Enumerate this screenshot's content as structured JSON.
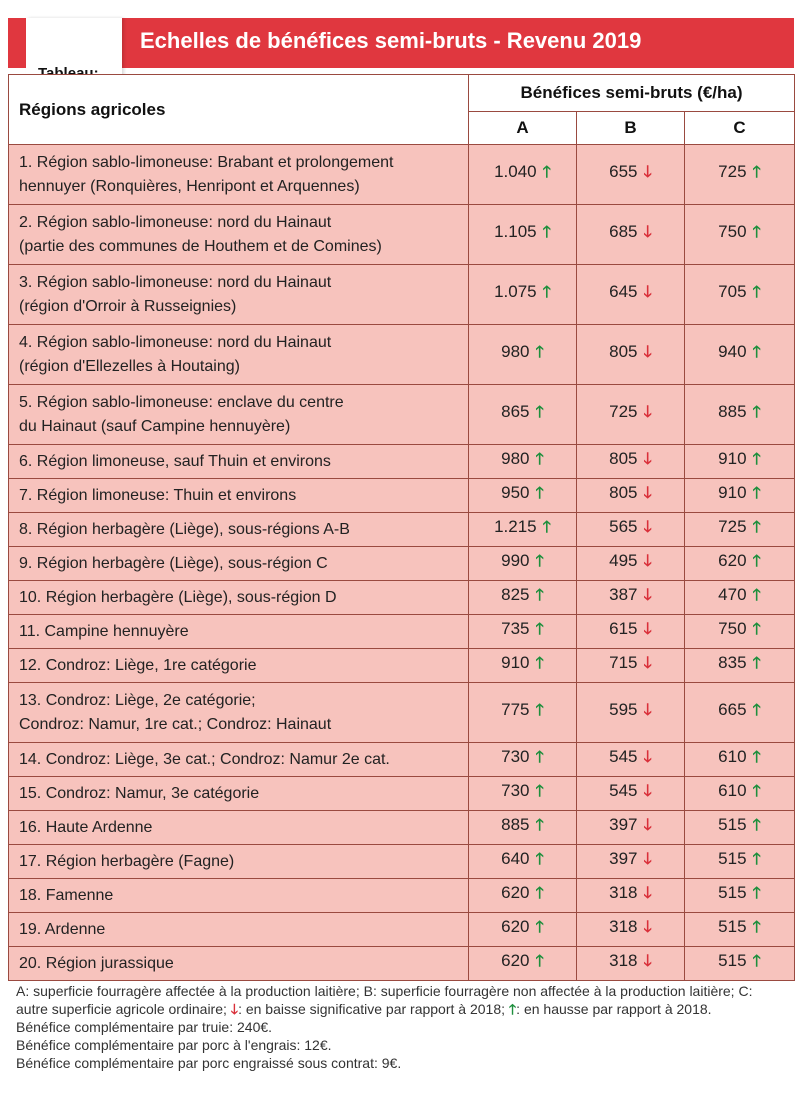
{
  "header": {
    "tag": "Tableau:",
    "title": "Echelles de bénéfices semi-bruts - Revenu 2019"
  },
  "table": {
    "region_header": "Régions agricoles",
    "group_header": "Bénéfices semi-bruts (€/ha)",
    "columns": [
      "A",
      "B",
      "C"
    ],
    "rows": [
      {
        "lines": [
          "1. Région sablo-limoneuse: Brabant et prolongement",
          "hennuyer (Ronquières, Henripont et Arquennes)"
        ],
        "a": "1.040",
        "b": "655",
        "c": "725"
      },
      {
        "lines": [
          "2. Région sablo-limoneuse: nord du Hainaut",
          "(partie des communes de Houthem et de Comines)"
        ],
        "a": "1.105",
        "b": "685",
        "c": "750"
      },
      {
        "lines": [
          "3. Région sablo-limoneuse: nord du Hainaut",
          "(région d'Orroir à Russeignies)"
        ],
        "a": "1.075",
        "b": "645",
        "c": "705"
      },
      {
        "lines": [
          "4. Région sablo-limoneuse: nord du Hainaut",
          "(région d'Ellezelles à Houtaing)"
        ],
        "a": "980",
        "b": "805",
        "c": "940"
      },
      {
        "lines": [
          "5. Région sablo-limoneuse: enclave du centre",
          "du Hainaut (sauf Campine hennuyère)"
        ],
        "a": "865",
        "b": "725",
        "c": "885"
      },
      {
        "lines": [
          "6. Région limoneuse, sauf Thuin et environs"
        ],
        "a": "980",
        "b": "805",
        "c": "910"
      },
      {
        "lines": [
          "7. Région limoneuse: Thuin et environs"
        ],
        "a": "950",
        "b": "805",
        "c": "910"
      },
      {
        "lines": [
          "8. Région herbagère (Liège), sous-régions A-B"
        ],
        "a": "1.215",
        "b": "565",
        "c": "725"
      },
      {
        "lines": [
          "9. Région herbagère (Liège), sous-région C"
        ],
        "a": "990",
        "b": "495",
        "c": "620"
      },
      {
        "lines": [
          "10. Région herbagère (Liège), sous-région D"
        ],
        "a": "825",
        "b": "387",
        "c": "470"
      },
      {
        "lines": [
          "11. Campine hennuyère"
        ],
        "a": "735",
        "b": "615",
        "c": "750"
      },
      {
        "lines": [
          "12. Condroz: Liège, 1re catégorie"
        ],
        "a": "910",
        "b": "715",
        "c": "835"
      },
      {
        "lines": [
          "13. Condroz: Liège, 2e catégorie;",
          "Condroz: Namur, 1re cat.; Condroz: Hainaut"
        ],
        "a": "775",
        "b": "595",
        "c": "665"
      },
      {
        "lines": [
          "14. Condroz: Liège, 3e cat.; Condroz: Namur 2e cat."
        ],
        "a": "730",
        "b": "545",
        "c": "610"
      },
      {
        "lines": [
          "15. Condroz: Namur, 3e catégorie"
        ],
        "a": "730",
        "b": "545",
        "c": "610"
      },
      {
        "lines": [
          "16. Haute Ardenne"
        ],
        "a": "885",
        "b": "397",
        "c": "515"
      },
      {
        "lines": [
          "17. Région herbagère (Fagne)"
        ],
        "a": "640",
        "b": "397",
        "c": "515"
      },
      {
        "lines": [
          "18. Famenne"
        ],
        "a": "620",
        "b": "318",
        "c": "515"
      },
      {
        "lines": [
          "19. Ardenne"
        ],
        "a": "620",
        "b": "318",
        "c": "515"
      },
      {
        "lines": [
          "20. Région jurassique"
        ],
        "a": "620",
        "b": "318",
        "c": "515"
      }
    ],
    "trend": {
      "a": "up",
      "b": "down",
      "c": "up"
    }
  },
  "icons": {
    "up": "green-up-arrow-icon",
    "down": "red-down-arrow-icon"
  },
  "colors": {
    "header_red": "#e0373f",
    "row_pink": "#f7c3bd",
    "up_green": "#1e8f3d",
    "down_red": "#d9303a"
  },
  "notes": {
    "legend_a": "A: superficie fourragère affectée à la production laitière; B: superficie fourragère non affectée à la production laitière; C: autre superficie agricole ordinaire;",
    "legend_down": ": en baisse significative par rapport à 2018;",
    "legend_up": ": en hausse par rapport à 2018.",
    "line2": "Bénéfice complémentaire par truie: 240€.",
    "line3": "Bénéfice complémentaire par porc à l'engrais: 12€.",
    "line4": "Bénéfice complémentaire par porc engraissé sous contrat: 9€."
  }
}
